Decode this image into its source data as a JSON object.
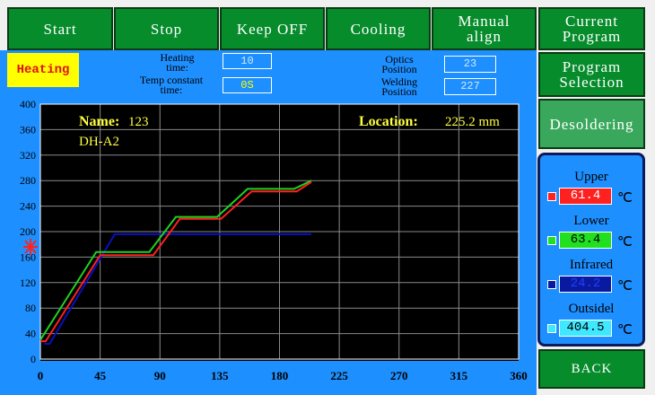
{
  "buttons": {
    "start": "Start",
    "stop": "Stop",
    "keep_off": "Keep OFF",
    "cooling": "Cooling",
    "manual_align": "Manual\nalign",
    "current_program": "Current\nProgram",
    "program_selection": "Program\nSelection",
    "desoldering": "Desoldering",
    "back": "BACK"
  },
  "status": {
    "mode": "Heating",
    "heating_time": {
      "label": "Heating\ntime:",
      "value": "10"
    },
    "temp_constant_time": {
      "label": "Temp constant\ntime:",
      "value": "0S"
    },
    "optics_position": {
      "label": "Optics\nPosition",
      "value": "23"
    },
    "welding_position": {
      "label": "Welding\nPosition",
      "value": "227"
    }
  },
  "temperatures": [
    {
      "label": "Upper",
      "value": "61.4",
      "unit": "℃",
      "color": "#ff2020"
    },
    {
      "label": "Lower",
      "value": "63.4",
      "unit": "℃",
      "color": "#20e020"
    },
    {
      "label": "Infrared",
      "value": "24.2",
      "unit": "℃",
      "color": "#0a1aa0"
    },
    {
      "label": "Outsidel",
      "value": "404.5",
      "unit": "℃",
      "color": "#40e8ff"
    }
  ],
  "chart_data": {
    "type": "line",
    "name_label": "Name:",
    "name_value": "123",
    "model": "DH-A2",
    "location_label": "Location:",
    "location_value": "225.2 mm",
    "xlim": [
      0,
      360
    ],
    "xticks": [
      0,
      45,
      90,
      135,
      180,
      225,
      270,
      315,
      360
    ],
    "ylim": [
      0,
      400
    ],
    "yticks": [
      0,
      40,
      80,
      120,
      160,
      200,
      240,
      280,
      320,
      360,
      400
    ],
    "grid": true,
    "series": [
      {
        "color": "#0a10c0",
        "x": [
          3,
          7,
          56,
          204
        ],
        "values": [
          24,
          24,
          196,
          196
        ]
      },
      {
        "color": "#20d020",
        "x": [
          0,
          42,
          82,
          102,
          133,
          156,
          191,
          204
        ],
        "values": [
          30,
          168,
          168,
          223,
          223,
          267,
          267,
          280
        ]
      },
      {
        "color": "#ff2020",
        "x": [
          0,
          4,
          45,
          85,
          105,
          136,
          159,
          193,
          204
        ],
        "values": [
          28,
          28,
          163,
          163,
          220,
          220,
          263,
          263,
          278
        ]
      }
    ]
  }
}
